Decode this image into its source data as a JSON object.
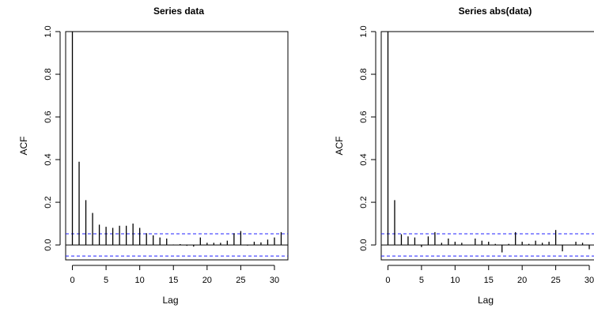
{
  "chart_data": [
    {
      "type": "bar",
      "title": "Series  data",
      "xlabel": "Lag",
      "ylabel": "ACF",
      "xlim": [
        -1,
        32
      ],
      "ylim": [
        -0.07,
        1.0
      ],
      "x_ticks": [
        "0",
        "5",
        "10",
        "15",
        "20",
        "25",
        "30"
      ],
      "y_ticks": [
        "0.0",
        "0.2",
        "0.4",
        "0.6",
        "0.8",
        "1.0"
      ],
      "confidence_bound": 0.052,
      "confidence_color": "#2020ff",
      "lags": [
        0,
        1,
        2,
        3,
        4,
        5,
        6,
        7,
        8,
        9,
        10,
        11,
        12,
        13,
        14,
        15,
        16,
        17,
        18,
        19,
        20,
        21,
        22,
        23,
        24,
        25,
        26,
        27,
        28,
        29,
        30,
        31
      ],
      "values": [
        1.0,
        0.39,
        0.21,
        0.15,
        0.095,
        0.085,
        0.08,
        0.09,
        0.09,
        0.1,
        0.08,
        0.055,
        0.045,
        0.035,
        0.03,
        0.002,
        0.004,
        -0.004,
        -0.008,
        0.035,
        0.01,
        0.01,
        0.01,
        0.02,
        0.055,
        0.065,
        -0.003,
        0.015,
        0.012,
        0.025,
        0.035,
        0.06
      ]
    },
    {
      "type": "bar",
      "title": "Series  abs(data)",
      "xlabel": "Lag",
      "ylabel": "ACF",
      "xlim": [
        -1,
        32
      ],
      "ylim": [
        -0.07,
        1.0
      ],
      "x_ticks": [
        "0",
        "5",
        "10",
        "15",
        "20",
        "25",
        "30"
      ],
      "y_ticks": [
        "0.0",
        "0.2",
        "0.4",
        "0.6",
        "0.8",
        "1.0"
      ],
      "confidence_bound": 0.052,
      "confidence_color": "#2020ff",
      "lags": [
        0,
        1,
        2,
        3,
        4,
        5,
        6,
        7,
        8,
        9,
        10,
        11,
        12,
        13,
        14,
        15,
        16,
        17,
        18,
        19,
        20,
        21,
        22,
        23,
        24,
        25,
        26,
        27,
        28,
        29,
        30,
        31
      ],
      "values": [
        1.0,
        0.21,
        0.05,
        0.04,
        0.035,
        -0.01,
        0.04,
        0.06,
        0.01,
        0.03,
        0.015,
        0.01,
        0.0,
        0.03,
        0.02,
        0.015,
        0.005,
        -0.035,
        0.005,
        0.06,
        0.015,
        0.005,
        0.02,
        0.01,
        0.015,
        0.07,
        -0.03,
        0.0,
        0.015,
        0.01,
        -0.02,
        0.0
      ]
    }
  ]
}
